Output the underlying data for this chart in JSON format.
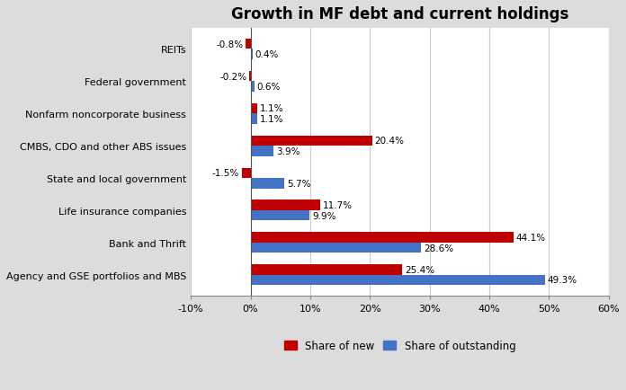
{
  "title": "Growth in MF debt and current holdings",
  "categories": [
    "Agency and GSE portfolios and MBS",
    "Bank and Thrift",
    "Life insurance companies",
    "State and local government",
    "CMBS, CDO and other ABS issues",
    "Nonfarm noncorporate business",
    "Federal government",
    "REITs"
  ],
  "share_of_new": [
    25.4,
    44.1,
    11.7,
    -1.5,
    20.4,
    1.1,
    -0.2,
    -0.8
  ],
  "share_of_outstanding": [
    49.3,
    28.6,
    9.9,
    5.7,
    3.9,
    1.1,
    0.6,
    0.4
  ],
  "color_new": "#C00000",
  "color_outstanding": "#4472C4",
  "xlim": [
    -10,
    60
  ],
  "xticks": [
    -10,
    0,
    10,
    20,
    30,
    40,
    50,
    60
  ],
  "xtick_labels": [
    "-10%",
    "0%",
    "10%",
    "20%",
    "30%",
    "40%",
    "50%",
    "60%"
  ],
  "legend_new": "Share of new",
  "legend_outstanding": "Share of outstanding",
  "background_color": "#DCDCDC",
  "plot_background": "#FFFFFF",
  "bar_height": 0.32,
  "label_fontsize": 7.5,
  "tick_fontsize": 8,
  "title_fontsize": 12
}
